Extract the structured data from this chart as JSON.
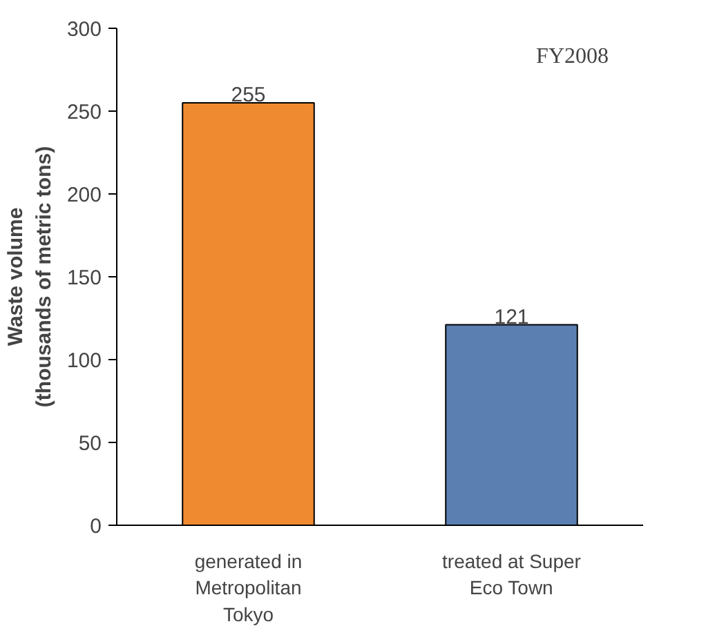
{
  "chart_data": {
    "type": "bar",
    "ylabel": "Waste volume\n(thousands of metric tons)",
    "categories": [
      "generated in\nMetropolitan\nTokyo",
      "treated at Super\nEco Town"
    ],
    "values": [
      255,
      121
    ],
    "colors": [
      "#f08a30",
      "#5b7fb0"
    ],
    "ylim": [
      0,
      300
    ],
    "yticks": [
      0,
      50,
      100,
      150,
      200,
      250,
      300
    ],
    "data_labels": true,
    "grid": false,
    "annotations": [
      "FY2008"
    ]
  }
}
